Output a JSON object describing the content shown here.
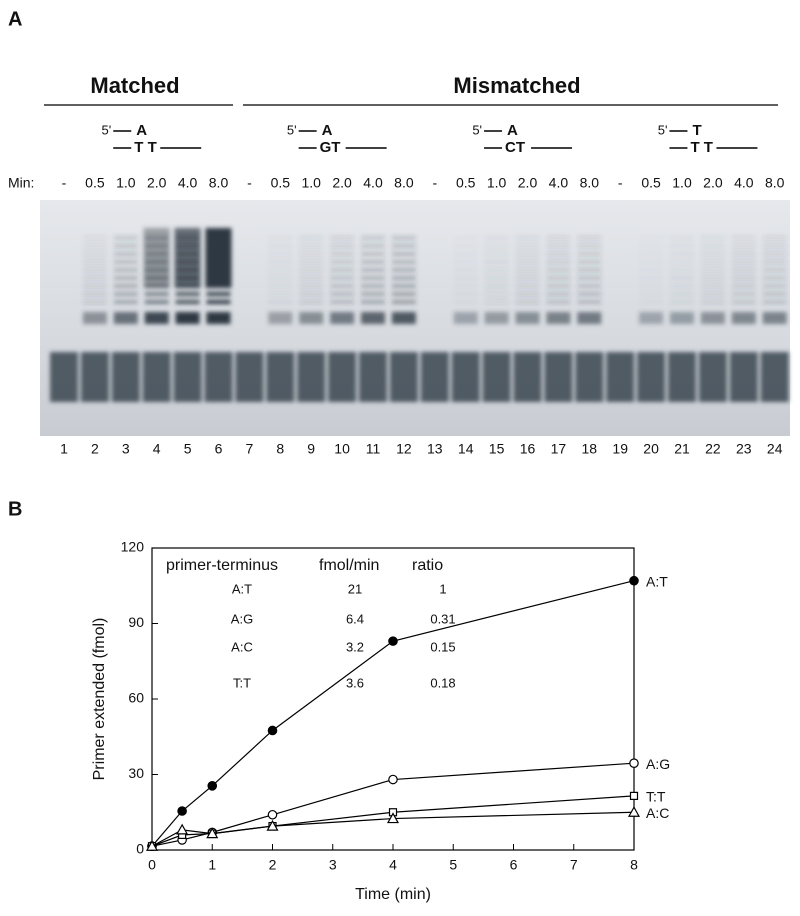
{
  "panel_a": {
    "label": "A",
    "groups": [
      "Matched",
      "Mismatched"
    ],
    "five_prime": "5'",
    "substrates": [
      {
        "top": "A",
        "bottom": "T T"
      },
      {
        "top": "A",
        "bottom": "GT"
      },
      {
        "top": "A",
        "bottom": "CT"
      },
      {
        "top": "T",
        "bottom": "T T"
      }
    ],
    "min_label": "Min:",
    "times": [
      "-",
      "0.5",
      "1.0",
      "2.0",
      "4.0",
      "8.0",
      "-",
      "0.5",
      "1.0",
      "2.0",
      "4.0",
      "8.0",
      "-",
      "0.5",
      "1.0",
      "2.0",
      "4.0",
      "8.0",
      "-",
      "0.5",
      "1.0",
      "2.0",
      "4.0",
      "8.0"
    ],
    "lanes": [
      "1",
      "2",
      "3",
      "4",
      "5",
      "6",
      "7",
      "8",
      "9",
      "10",
      "11",
      "12",
      "13",
      "14",
      "15",
      "16",
      "17",
      "18",
      "19",
      "20",
      "21",
      "22",
      "23",
      "24"
    ]
  },
  "panel_b_label": "B",
  "chart_data": {
    "type": "line",
    "x_label": "Time (min)",
    "y_label": "Primer extended (fmol)",
    "x": [
      0,
      0.5,
      1,
      2,
      4,
      8
    ],
    "series": [
      {
        "name": "A:T",
        "color": "#000000",
        "marker": "circle-filled",
        "values": [
          1.5,
          15.5,
          25.5,
          47.5,
          83,
          107
        ]
      },
      {
        "name": "A:G",
        "color": "#000000",
        "marker": "circle-open",
        "values": [
          1.5,
          4,
          7,
          14,
          28,
          34.5
        ]
      },
      {
        "name": "T:T",
        "color": "#000000",
        "marker": "square-open",
        "values": [
          1.5,
          6,
          6.5,
          9.5,
          15,
          21.5
        ]
      },
      {
        "name": "A:C",
        "color": "#000000",
        "marker": "triangle-open",
        "values": [
          1.5,
          8,
          6.5,
          9.5,
          12.5,
          15
        ]
      }
    ],
    "xlim": [
      0,
      8
    ],
    "ylim": [
      0,
      120
    ],
    "xticks": [
      0,
      1,
      2,
      3,
      4,
      5,
      6,
      7,
      8
    ],
    "yticks": [
      0,
      30,
      60,
      90,
      120
    ],
    "inset_table": {
      "header": [
        "primer-terminus",
        "fmol/min",
        "ratio"
      ],
      "rows": [
        [
          "A:T",
          "21",
          "1"
        ],
        [
          "A:G",
          "6.4",
          "0.31"
        ],
        [
          "A:C",
          "3.2",
          "0.15"
        ],
        [
          "T:T",
          "3.6",
          "0.18"
        ]
      ]
    }
  }
}
